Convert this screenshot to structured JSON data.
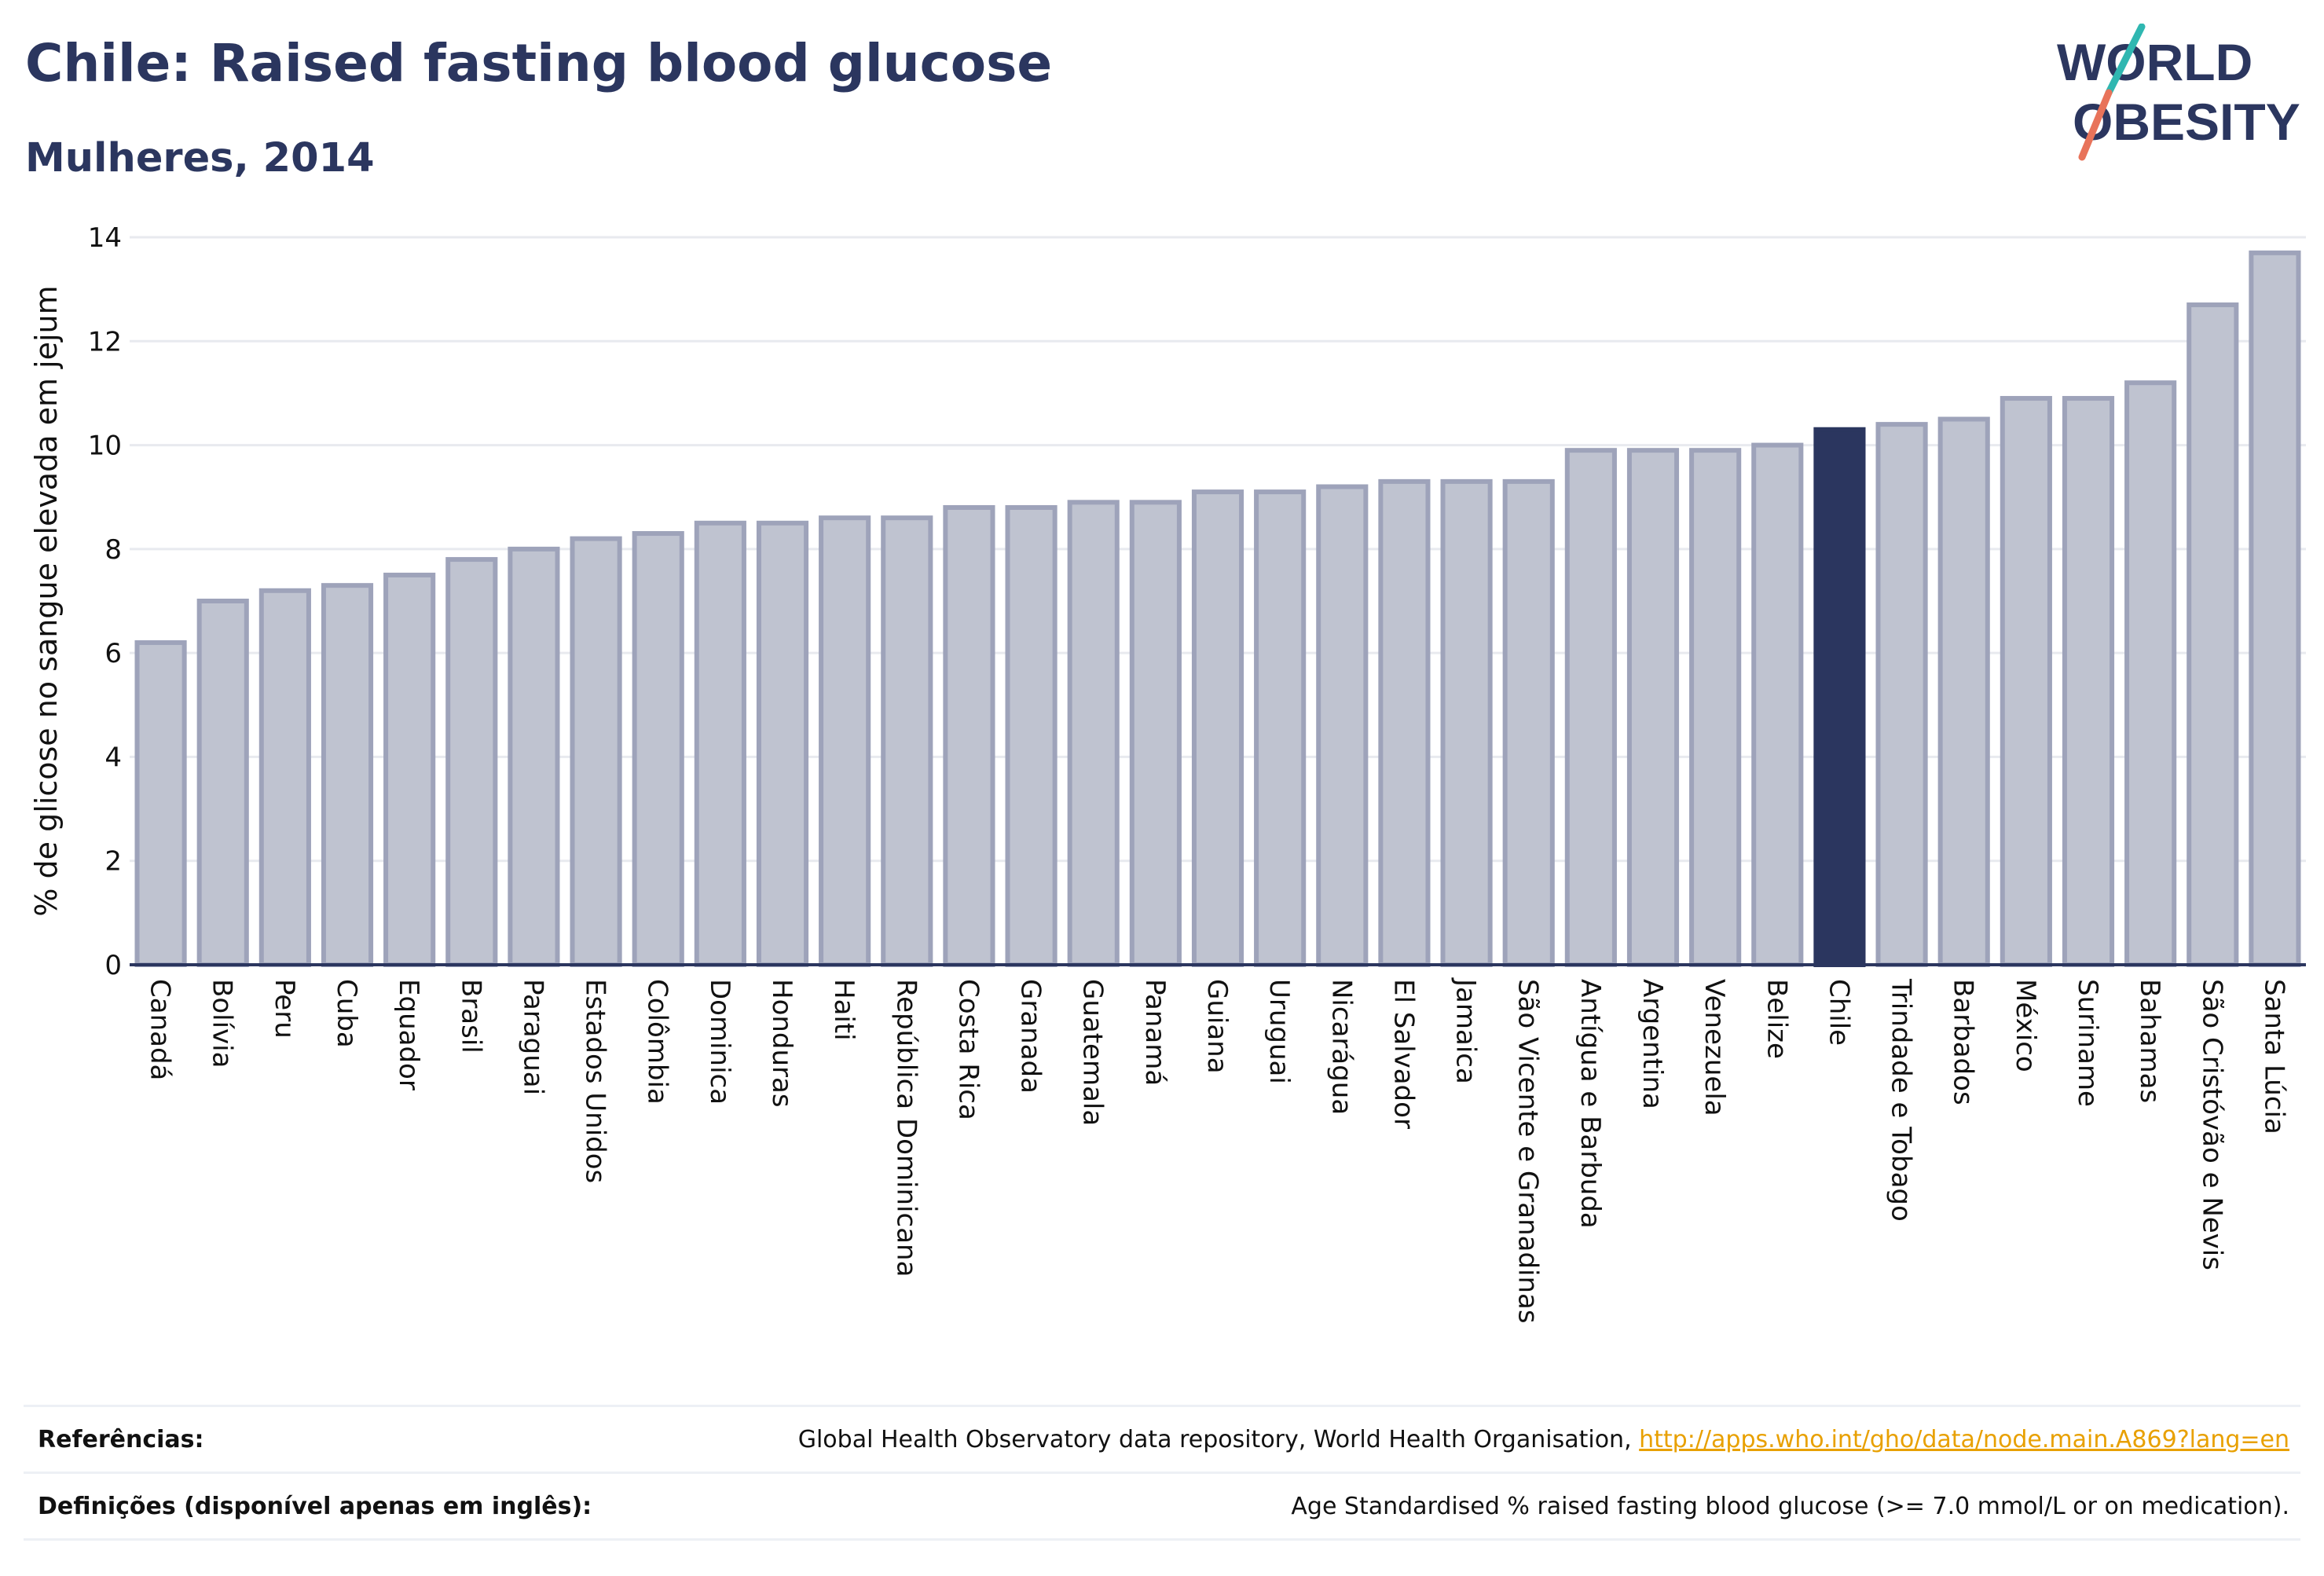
{
  "header": {
    "title": "Chile: Raised fasting blood glucose",
    "subtitle": "Mulheres, 2014"
  },
  "logo": {
    "line1": "WORLD",
    "line2": "OBESITY",
    "colors": {
      "text": "#2b365f",
      "slash_top": "#2fb7b1",
      "slash_bottom": "#e8735a"
    }
  },
  "chart_data": {
    "type": "bar",
    "categories": [
      "Canadá",
      "Bolívia",
      "Peru",
      "Cuba",
      "Equador",
      "Brasil",
      "Paraguai",
      "Estados Unidos",
      "Colômbia",
      "Dominica",
      "Honduras",
      "Haiti",
      "República Dominicana",
      "Costa Rica",
      "Granada",
      "Guatemala",
      "Panamá",
      "Guiana",
      "Uruguai",
      "Nicarágua",
      "El Salvador",
      "Jamaica",
      "São Vicente e Granadinas",
      "Antígua e Barbuda",
      "Argentina",
      "Venezuela",
      "Belize",
      "Chile",
      "Trindade e Tobago",
      "Barbados",
      "México",
      "Suriname",
      "Bahamas",
      "São Cristóvão e Nevis",
      "Santa Lúcia"
    ],
    "values": [
      6.2,
      7.0,
      7.2,
      7.3,
      7.5,
      7.8,
      8.0,
      8.2,
      8.3,
      8.5,
      8.5,
      8.6,
      8.6,
      8.8,
      8.8,
      8.9,
      8.9,
      9.1,
      9.1,
      9.2,
      9.3,
      9.3,
      9.3,
      9.9,
      9.9,
      9.9,
      10.0,
      10.3,
      10.4,
      10.5,
      10.9,
      10.9,
      11.2,
      12.7,
      13.7
    ],
    "highlight": "Chile",
    "ylabel": "% de glicose no sangue elevada em jejum",
    "xlabel": "",
    "ylim": [
      0,
      14
    ],
    "yticks": [
      0,
      2,
      4,
      6,
      8,
      10,
      12,
      14
    ],
    "grid": true,
    "colors": {
      "bar": "#bfc3d0",
      "bar_outline": "#9ea3ba",
      "highlight": "#2b365f",
      "grid": "#e8eaef",
      "axis": "#2b365f"
    }
  },
  "references": {
    "label": "Referências:",
    "text": "Global Health Observatory data repository, World Health Organisation, ",
    "link": "http://apps.who.int/gho/data/node.main.A869?lang=en"
  },
  "definitions": {
    "label": "Definições (disponível apenas em inglês):",
    "text": "Age Standardised % raised fasting blood glucose (>= 7.0 mmol/L or on medication)."
  }
}
